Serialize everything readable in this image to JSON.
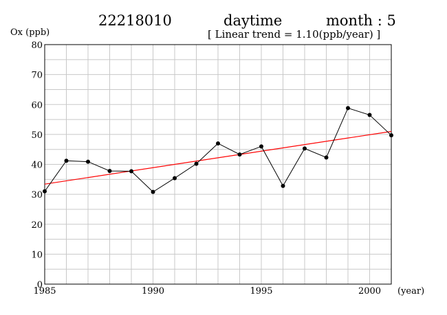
{
  "header": {
    "station": "22218010",
    "period": "daytime",
    "month": "month : 5",
    "subtitle": "[ Linear trend = 1.10(ppb/year) ]"
  },
  "colors": {
    "series": "#000000",
    "trend": "#ff0000",
    "grid": "#c8c8c8"
  },
  "chart_data": {
    "type": "line",
    "title": "22218010 daytime month : 5",
    "subtitle": "[ Linear trend = 1.10(ppb/year) ]",
    "ylabel": "Ox (ppb)",
    "xlabel": "(year)",
    "xlim": [
      1985,
      2001
    ],
    "ylim": [
      0,
      80
    ],
    "x_ticks": [
      1985,
      1990,
      1995,
      2000
    ],
    "y_ticks": [
      0,
      10,
      20,
      30,
      40,
      50,
      60,
      70,
      80
    ],
    "grid": true,
    "series": [
      {
        "x": [
          1985,
          1986,
          1987,
          1988,
          1989,
          1990,
          1991,
          1992,
          1993,
          1994,
          1995,
          1996,
          1997,
          1998,
          1999,
          2000,
          2001
        ],
        "values": [
          31.0,
          41.2,
          40.9,
          37.8,
          37.7,
          30.8,
          35.4,
          40.2,
          47.0,
          43.3,
          46.0,
          32.8,
          45.3,
          42.3,
          58.8,
          56.5,
          49.7
        ]
      }
    ],
    "trend": {
      "slope": 1.1,
      "start": [
        1985,
        33.4
      ],
      "end": [
        2001,
        51.0
      ]
    }
  }
}
